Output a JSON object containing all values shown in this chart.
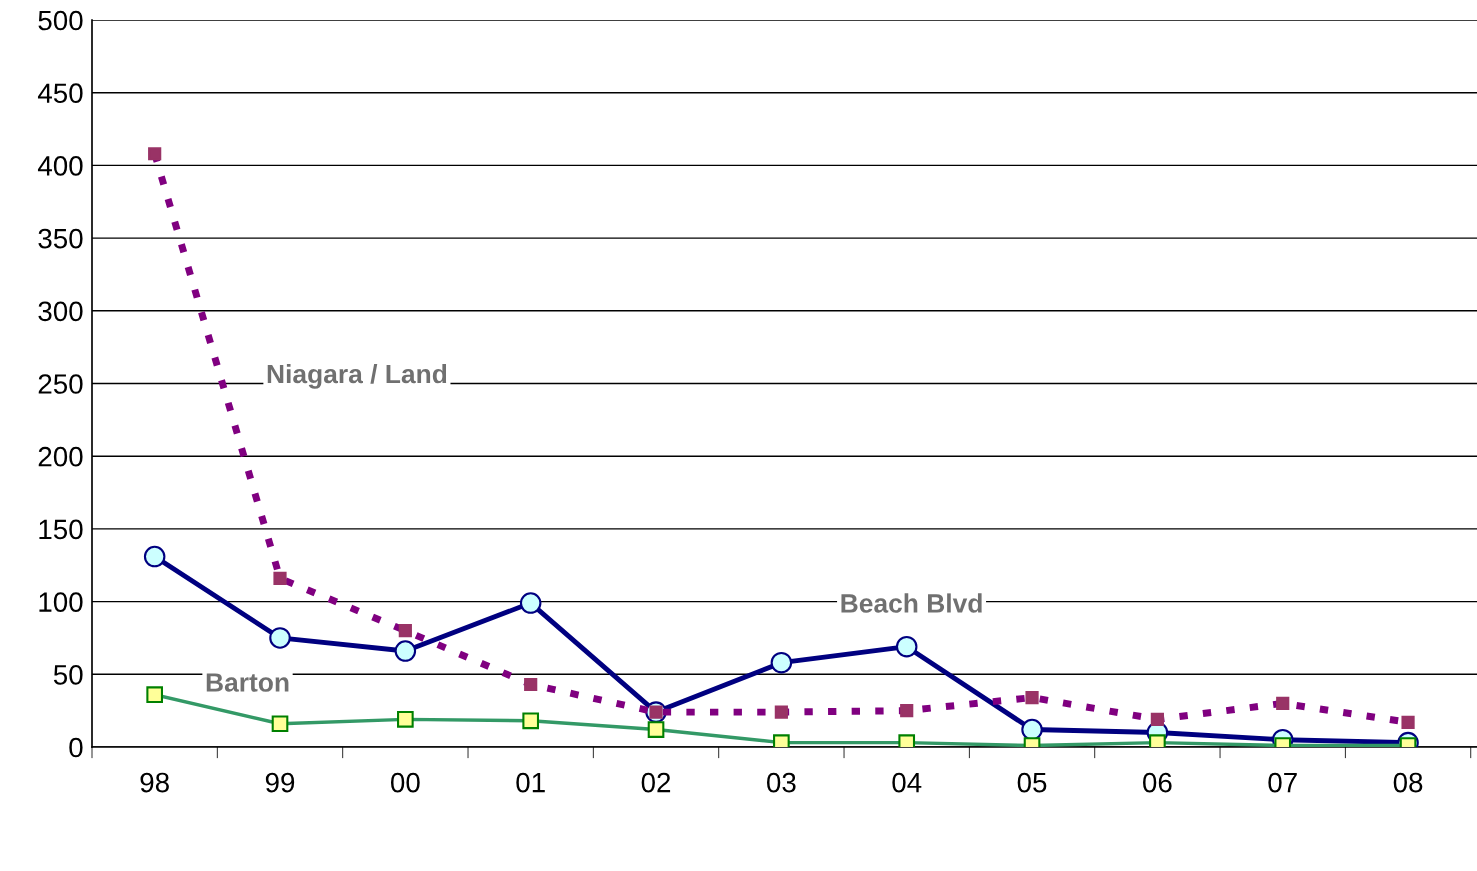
{
  "chart_data": {
    "type": "line",
    "categories": [
      "98",
      "99",
      "00",
      "01",
      "02",
      "03",
      "04",
      "05",
      "06",
      "07",
      "08"
    ],
    "ylim": [
      0,
      500
    ],
    "yticks": [
      0,
      50,
      100,
      150,
      200,
      250,
      300,
      350,
      400,
      450,
      500
    ],
    "grid": "y",
    "legend": false,
    "series": [
      {
        "name": "Beach Blvd",
        "color": "#000080",
        "marker": "circle",
        "line_style": "solid",
        "values": [
          131,
          75,
          66,
          99,
          24,
          58,
          69,
          12,
          10,
          5,
          3
        ]
      },
      {
        "name": "Niagara / Land",
        "color": "#800080",
        "marker": "square",
        "line_style": "dotted",
        "values": [
          408,
          116,
          80,
          43,
          24,
          24,
          25,
          34,
          19,
          30,
          17
        ]
      },
      {
        "name": "Barton",
        "color": "#339966",
        "marker": "square",
        "line_style": "solid",
        "values": [
          36,
          16,
          19,
          18,
          12,
          3,
          3,
          1,
          3,
          1,
          1
        ]
      }
    ]
  }
}
